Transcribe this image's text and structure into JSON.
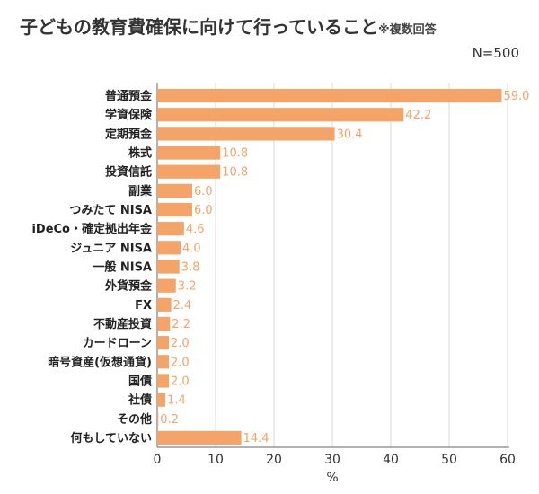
{
  "header": {
    "title": "子どもの教育費確保に向けて行っていること",
    "note": "※複数回答",
    "sample_size": "N=500"
  },
  "colors": {
    "bar": "#f4a468",
    "value_text": "#f4a468",
    "grid": "#d9d9d9",
    "axis": "#666666"
  },
  "chart_data": {
    "type": "bar",
    "orientation": "horizontal",
    "title": "子どもの教育費確保に向けて行っていること",
    "categories": [
      "普通預金",
      "学資保険",
      "定期預金",
      "株式",
      "投資信託",
      "副業",
      "つみたて NISA",
      "iDeCo・確定拠出年金",
      "ジュニア NISA",
      "一般 NISA",
      "外貨預金",
      "FX",
      "不動産投資",
      "カードローン",
      "暗号資産(仮想通貨)",
      "国債",
      "社債",
      "その他",
      "何もしていない"
    ],
    "values": [
      59.0,
      42.2,
      30.4,
      10.8,
      10.8,
      6.0,
      6.0,
      4.6,
      4.0,
      3.8,
      3.2,
      2.4,
      2.2,
      2.0,
      2.0,
      2.0,
      1.4,
      0.2,
      14.4
    ],
    "value_labels": [
      "59.0",
      "42.2",
      "30.4",
      "10.8",
      "10.8",
      "6.0",
      "6.0",
      "4.6",
      "4.0",
      "3.8",
      "3.2",
      "2.4",
      "2.2",
      "2.0",
      "2.0",
      "2.0",
      "1.4",
      "0.2",
      "14.4"
    ],
    "xlabel": "%",
    "xlim": [
      0,
      60
    ],
    "xticks": [
      "0",
      "10",
      "20",
      "30",
      "40",
      "50",
      "60"
    ],
    "grid": true
  }
}
